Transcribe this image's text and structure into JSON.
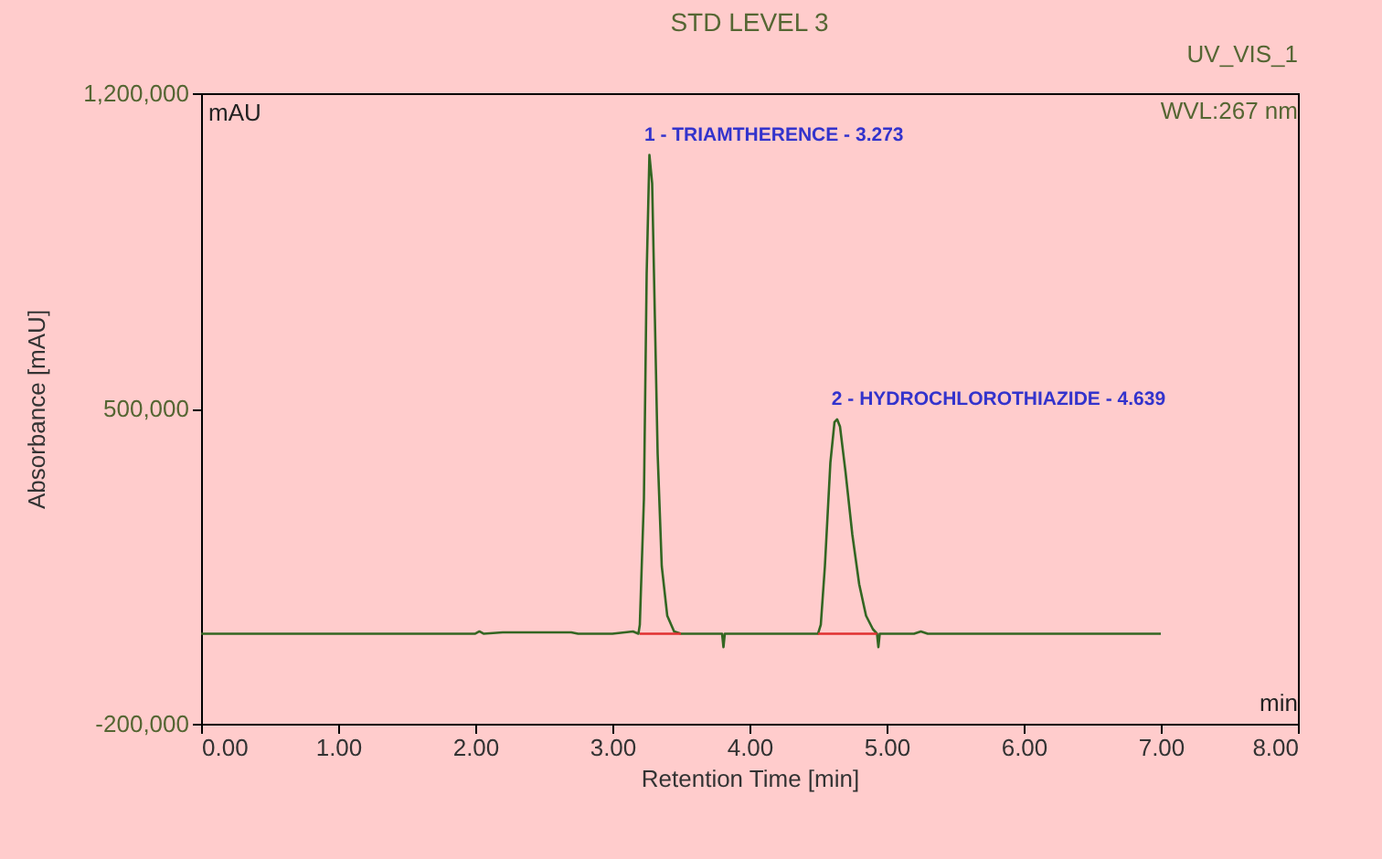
{
  "chart_data": {
    "type": "line",
    "title": "STD LEVEL 3",
    "xlabel": "Retention Time [min]",
    "ylabel": "Absorbance [mAU]",
    "annotations": [
      "UV_VIS_1",
      "WVL:267 nm",
      "mAU",
      "min",
      {
        "text": "1 - TRIAMTHERENCE - 3.273",
        "x": 3.273,
        "y": 1063000
      },
      {
        "text": "2 - HYDROCHLOROTHIAZIDE - 4.639",
        "x": 4.639,
        "y": 476000
      }
    ],
    "series": [
      {
        "color": "#336622",
        "x": [
          0,
          1.0,
          2.0,
          2.03,
          2.06,
          2.2,
          2.7,
          2.75,
          3.0,
          3.15,
          3.19,
          3.2,
          3.23,
          3.25,
          3.27,
          3.29,
          3.31,
          3.33,
          3.36,
          3.4,
          3.45,
          3.5,
          3.8,
          3.81,
          3.82,
          4.2,
          4.5,
          4.52,
          4.55,
          4.59,
          4.62,
          4.639,
          4.66,
          4.7,
          4.75,
          4.8,
          4.85,
          4.9,
          4.93,
          4.94,
          4.95,
          5.2,
          5.25,
          5.3,
          7.0
        ],
        "values": [
          0,
          0,
          0,
          5000,
          0,
          3000,
          3000,
          0,
          0,
          5000,
          0,
          20000,
          300000,
          800000,
          1063000,
          1000000,
          700000,
          400000,
          150000,
          40000,
          5000,
          0,
          0,
          -30000,
          0,
          0,
          0,
          20000,
          150000,
          380000,
          470000,
          476000,
          460000,
          360000,
          220000,
          110000,
          40000,
          10000,
          0,
          -30000,
          0,
          0,
          5000,
          0,
          0
        ]
      },
      {
        "color": "#e03030",
        "x": [
          3.2,
          3.5,
          3.51,
          4.5,
          4.93
        ],
        "values": [
          0,
          0,
          null,
          0,
          0
        ]
      }
    ],
    "xlim": [
      0,
      8
    ],
    "xticks": [
      {
        "value": 0,
        "label": "0.00"
      },
      {
        "value": 1,
        "label": "1.00"
      },
      {
        "value": 2,
        "label": "2.00"
      },
      {
        "value": 3,
        "label": "3.00"
      },
      {
        "value": 4,
        "label": "4.00"
      },
      {
        "value": 5,
        "label": "5.00"
      },
      {
        "value": 6,
        "label": "6.00"
      },
      {
        "value": 7,
        "label": "7.00"
      },
      {
        "value": 8,
        "label": "8.00"
      }
    ],
    "ylim": [
      -200000,
      1200000
    ],
    "yticks": [
      {
        "value": -200000,
        "label": "-200,000"
      },
      {
        "value": 500000,
        "label": "500,000"
      },
      {
        "value": 1200000,
        "label": "1,200,000"
      }
    ],
    "grid": false,
    "line_style": "solid"
  }
}
